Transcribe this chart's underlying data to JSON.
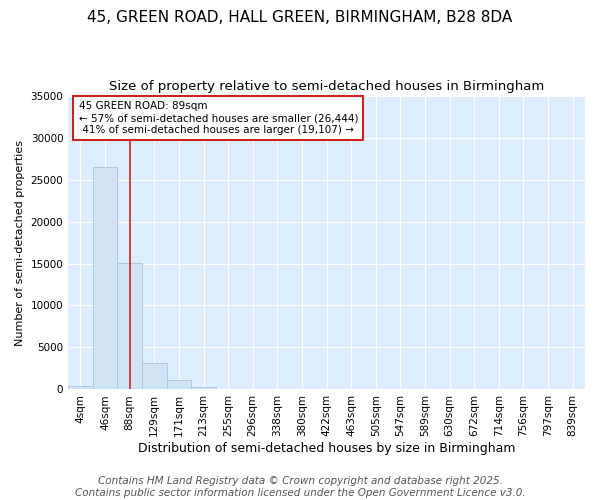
{
  "title": "45, GREEN ROAD, HALL GREEN, BIRMINGHAM, B28 8DA",
  "subtitle": "Size of property relative to semi-detached houses in Birmingham",
  "xlabel": "Distribution of semi-detached houses by size in Birmingham",
  "ylabel": "Number of semi-detached properties",
  "categories": [
    "4sqm",
    "46sqm",
    "88sqm",
    "129sqm",
    "171sqm",
    "213sqm",
    "255sqm",
    "296sqm",
    "338sqm",
    "380sqm",
    "422sqm",
    "463sqm",
    "505sqm",
    "547sqm",
    "589sqm",
    "630sqm",
    "672sqm",
    "714sqm",
    "756sqm",
    "797sqm",
    "839sqm"
  ],
  "values": [
    400,
    26444,
    15107,
    3200,
    1100,
    350,
    50,
    0,
    0,
    0,
    0,
    0,
    0,
    0,
    0,
    0,
    0,
    0,
    0,
    0,
    0
  ],
  "bar_color": "#d0e4f4",
  "bar_edge_color": "#aac4dc",
  "vline_x": 2,
  "vline_color": "#cc2222",
  "annotation_text": "45 GREEN ROAD: 89sqm\n← 57% of semi-detached houses are smaller (26,444)\n 41% of semi-detached houses are larger (19,107) →",
  "annotation_box_color": "#ffffff",
  "annotation_box_edge": "#cc2222",
  "ylim": [
    0,
    35000
  ],
  "yticks": [
    0,
    5000,
    10000,
    15000,
    20000,
    25000,
    30000,
    35000
  ],
  "fig_bg_color": "#ffffff",
  "plot_bg_color": "#ddeeff",
  "grid_color": "#ffffff",
  "footer": "Contains HM Land Registry data © Crown copyright and database right 2025.\nContains public sector information licensed under the Open Government Licence v3.0.",
  "title_fontsize": 11,
  "subtitle_fontsize": 9.5,
  "ylabel_fontsize": 8,
  "xlabel_fontsize": 9,
  "footer_fontsize": 7.5,
  "tick_fontsize": 7.5
}
